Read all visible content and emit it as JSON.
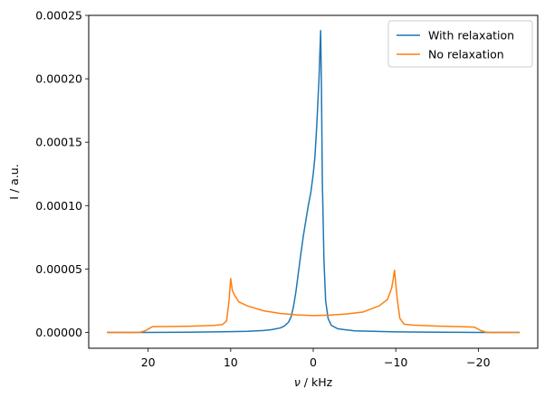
{
  "chart_data": {
    "type": "line",
    "xlabel_symbol": "ν",
    "xlabel_unit": " / kHz",
    "ylabel": "I / a.u.",
    "xlim": [
      27.2,
      -27.2
    ],
    "ylim": [
      -1.25e-05,
      0.00025
    ],
    "xticks": [
      20,
      10,
      0,
      -10,
      -20
    ],
    "xtick_labels": [
      "20",
      "10",
      "0",
      "−10",
      "−20"
    ],
    "yticks": [
      0,
      5e-05,
      0.0001,
      0.00015,
      0.0002,
      0.00025
    ],
    "ytick_labels": [
      "0.00000",
      "0.00005",
      "0.00010",
      "0.00015",
      "0.00020",
      "0.00025"
    ],
    "legend_position": "top-right",
    "grid": false,
    "series": [
      {
        "name": "With relaxation",
        "color": "#1f77b4",
        "x": [
          25,
          20,
          15,
          10,
          8,
          6,
          5,
          4,
          3.5,
          3,
          2.7,
          2.4,
          2.1,
          1.8,
          1.5,
          1.2,
          0.9,
          0.6,
          0.3,
          0,
          -0.2,
          -0.4,
          -0.55,
          -0.7,
          -0.8,
          -0.9,
          -1.0,
          -1.1,
          -1.3,
          -1.5,
          -1.8,
          -2.2,
          -3,
          -5,
          -10,
          -15,
          -20,
          -25
        ],
        "y": [
          0,
          0,
          2e-07,
          6e-07,
          9e-07,
          1.5e-06,
          2.2e-06,
          3.5e-06,
          5e-06,
          8e-06,
          1.2e-05,
          2e-05,
          3.2e-05,
          4.7e-05,
          6.2e-05,
          7.6e-05,
          8.8e-05,
          0.0001,
          0.00011,
          0.000125,
          0.000138,
          0.00016,
          0.00018,
          0.0002,
          0.00022,
          0.000238,
          0.00019,
          0.00012,
          5.7e-05,
          2.5e-05,
          1.1e-05,
          5.5e-06,
          2.8e-06,
          1.2e-06,
          4e-07,
          2e-07,
          0,
          0
        ]
      },
      {
        "name": "No relaxation",
        "color": "#ff7f0e",
        "x": [
          25,
          21,
          20.3,
          19.5,
          18,
          15,
          12,
          11,
          10.5,
          10.2,
          10,
          9.8,
          9.5,
          9,
          8,
          6,
          4,
          2,
          0,
          -2,
          -4,
          -6,
          -8,
          -9,
          -9.5,
          -9.7,
          -9.85,
          -10,
          -10.2,
          -10.5,
          -11,
          -12,
          -15,
          -19.5,
          -20.3,
          -21,
          -25
        ],
        "y": [
          0,
          0,
          1.5e-06,
          4.5e-06,
          4.6e-06,
          4.9e-06,
          5.5e-06,
          6.2e-06,
          9e-06,
          2.5e-05,
          4.25e-05,
          3.3e-05,
          2.9e-05,
          2.4e-05,
          2.1e-05,
          1.7e-05,
          1.5e-05,
          1.38e-05,
          1.33e-05,
          1.36e-05,
          1.45e-05,
          1.6e-05,
          2.1e-05,
          2.6e-05,
          3.5e-05,
          4.25e-05,
          4.9e-05,
          3.8e-05,
          2.5e-05,
          1.1e-05,
          6.5e-06,
          5.8e-06,
          5e-06,
          4.2e-06,
          1.5e-06,
          0,
          0
        ]
      }
    ]
  }
}
